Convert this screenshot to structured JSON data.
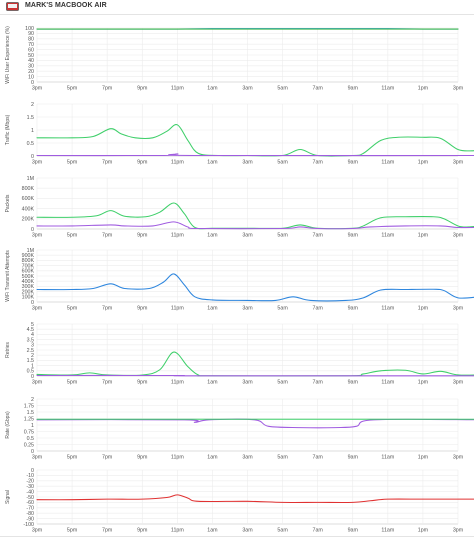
{
  "header": {
    "title": "MARK'S MACBOOK AIR",
    "icon": "laptop-icon"
  },
  "chart_data": [
    {
      "type": "line",
      "ylabel": "WiFi User Experience (%)",
      "x": [
        "3pm",
        "5pm",
        "7pm",
        "9pm",
        "11pm",
        "1am",
        "3am",
        "5am",
        "7am",
        "9am",
        "11am",
        "1pm",
        "3pm"
      ],
      "yticks": [
        "0",
        "10",
        "20",
        "30",
        "40",
        "50",
        "60",
        "70",
        "80",
        "90",
        "100"
      ],
      "ylim": [
        0,
        100
      ],
      "grid": true,
      "series": [
        {
          "color": "#4aa3df",
          "points": [
            [
              0,
              98
            ],
            [
              1,
              98
            ],
            [
              2,
              98
            ],
            [
              3,
              98
            ],
            [
              4,
              98
            ],
            [
              5,
              99
            ],
            [
              6,
              99
            ],
            [
              7,
              99
            ],
            [
              8,
              99
            ],
            [
              9,
              99
            ],
            [
              10,
              99
            ],
            [
              11,
              98
            ],
            [
              12,
              98
            ]
          ]
        },
        {
          "color": "#3fb950",
          "points": [
            [
              0,
              98
            ],
            [
              1,
              98
            ],
            [
              2,
              98
            ],
            [
              3,
              98
            ],
            [
              4,
              98
            ],
            [
              5,
              98
            ],
            [
              6,
              98
            ],
            [
              7,
              98
            ],
            [
              8,
              98
            ],
            [
              9,
              98
            ],
            [
              10,
              98
            ],
            [
              11,
              98
            ],
            [
              12,
              98
            ]
          ]
        }
      ]
    },
    {
      "type": "line",
      "ylabel": "Traffic (Mbps)",
      "x": [
        "3pm",
        "5pm",
        "7pm",
        "9pm",
        "11pm",
        "1am",
        "3am",
        "5am",
        "7am",
        "9am",
        "11am",
        "1pm",
        "3pm"
      ],
      "yticks": [
        "0",
        "0.5",
        "1",
        "1.5",
        "2"
      ],
      "ylim": [
        0,
        2
      ],
      "grid": true,
      "series": [
        {
          "color": "#3fcf6a",
          "points": [
            [
              0,
              0.7
            ],
            [
              1,
              0.7
            ],
            [
              1.6,
              0.75
            ],
            [
              2.1,
              1.05
            ],
            [
              2.4,
              0.85
            ],
            [
              2.8,
              0.7
            ],
            [
              3.3,
              0.7
            ],
            [
              3.7,
              0.95
            ],
            [
              4.0,
              1.2
            ],
            [
              4.3,
              0.6
            ],
            [
              4.6,
              0.1
            ],
            [
              5.2,
              0.02
            ],
            [
              6,
              0.02
            ],
            [
              7,
              0.02
            ],
            [
              7.5,
              0.25
            ],
            [
              8,
              0.02
            ],
            [
              9,
              0.02
            ],
            [
              9.3,
              0.1
            ],
            [
              9.8,
              0.6
            ],
            [
              10.3,
              0.72
            ],
            [
              11,
              0.72
            ],
            [
              11.5,
              0.68
            ],
            [
              12,
              0.25
            ],
            [
              12.4,
              0.2
            ],
            [
              12.6,
              0.25
            ]
          ]
        },
        {
          "color": "#a05ce0",
          "points": [
            [
              0,
              0.02
            ],
            [
              3.5,
              0.02
            ],
            [
              4.0,
              0.08
            ],
            [
              4.5,
              0.02
            ],
            [
              12.6,
              0.02
            ]
          ]
        }
      ]
    },
    {
      "type": "line",
      "ylabel": "Packets",
      "x": [
        "3pm",
        "5pm",
        "7pm",
        "9pm",
        "11pm",
        "1am",
        "3am",
        "5am",
        "7am",
        "9am",
        "11am",
        "1pm",
        "3pm"
      ],
      "yticks": [
        "0",
        "200K",
        "400K",
        "600K",
        "800K",
        "1M"
      ],
      "ylim": [
        0,
        1000000
      ],
      "grid": true,
      "series": [
        {
          "color": "#3fcf6a",
          "points": [
            [
              0,
              230000
            ],
            [
              1,
              230000
            ],
            [
              1.7,
              260000
            ],
            [
              2.1,
              360000
            ],
            [
              2.5,
              250000
            ],
            [
              3.1,
              240000
            ],
            [
              3.5,
              330000
            ],
            [
              3.9,
              510000
            ],
            [
              4.2,
              300000
            ],
            [
              4.5,
              30000
            ],
            [
              5,
              15000
            ],
            [
              6,
              15000
            ],
            [
              7,
              15000
            ],
            [
              7.5,
              80000
            ],
            [
              8,
              15000
            ],
            [
              9,
              15000
            ],
            [
              9.3,
              60000
            ],
            [
              9.8,
              220000
            ],
            [
              10.5,
              240000
            ],
            [
              11.3,
              240000
            ],
            [
              11.6,
              200000
            ],
            [
              12,
              60000
            ],
            [
              12.3,
              40000
            ],
            [
              12.6,
              60000
            ]
          ]
        },
        {
          "color": "#a05ce0",
          "points": [
            [
              0,
              60000
            ],
            [
              1,
              60000
            ],
            [
              2.1,
              80000
            ],
            [
              2.5,
              60000
            ],
            [
              3.3,
              60000
            ],
            [
              3.9,
              140000
            ],
            [
              4.3,
              40000
            ],
            [
              4.6,
              10000
            ],
            [
              7,
              10000
            ],
            [
              7.5,
              40000
            ],
            [
              8,
              10000
            ],
            [
              9,
              10000
            ],
            [
              9.5,
              40000
            ],
            [
              10.5,
              60000
            ],
            [
              11.5,
              60000
            ],
            [
              12,
              30000
            ],
            [
              12.6,
              30000
            ]
          ]
        }
      ]
    },
    {
      "type": "line",
      "ylabel": "WiFi Transmit Attempts",
      "x": [
        "3pm",
        "5pm",
        "7pm",
        "9pm",
        "11pm",
        "1am",
        "3am",
        "5am",
        "7am",
        "9am",
        "11am",
        "1pm",
        "3pm"
      ],
      "yticks": [
        "0",
        "100K",
        "200K",
        "300K",
        "400K",
        "500K",
        "600K",
        "700K",
        "800K",
        "900K",
        "1M"
      ],
      "ylim": [
        0,
        1000000
      ],
      "grid": true,
      "series": [
        {
          "color": "#2e86de",
          "points": [
            [
              0,
              240000
            ],
            [
              1,
              240000
            ],
            [
              1.6,
              260000
            ],
            [
              2.1,
              350000
            ],
            [
              2.5,
              260000
            ],
            [
              3.2,
              260000
            ],
            [
              3.6,
              380000
            ],
            [
              3.9,
              540000
            ],
            [
              4.2,
              330000
            ],
            [
              4.5,
              100000
            ],
            [
              5,
              40000
            ],
            [
              6,
              30000
            ],
            [
              6.8,
              30000
            ],
            [
              7.3,
              100000
            ],
            [
              7.8,
              30000
            ],
            [
              8.8,
              30000
            ],
            [
              9.3,
              80000
            ],
            [
              9.8,
              230000
            ],
            [
              10.5,
              240000
            ],
            [
              11.3,
              245000
            ],
            [
              11.6,
              220000
            ],
            [
              12,
              80000
            ],
            [
              12.6,
              100000
            ]
          ]
        }
      ]
    },
    {
      "type": "line",
      "ylabel": "Retries",
      "x": [
        "3pm",
        "5pm",
        "7pm",
        "9pm",
        "11pm",
        "1am",
        "3am",
        "5am",
        "7am",
        "9am",
        "11am",
        "1pm",
        "3pm"
      ],
      "yticks": [
        "0",
        "0.5",
        "1",
        "1.5",
        "2",
        "2.5",
        "3",
        "3.5",
        "4",
        "4.5",
        "5"
      ],
      "ylim": [
        0,
        5
      ],
      "grid": true,
      "series": [
        {
          "color": "#3fcf6a",
          "points": [
            [
              0,
              0.15
            ],
            [
              1,
              0.1
            ],
            [
              1.5,
              0.3
            ],
            [
              2,
              0.1
            ],
            [
              3,
              0.1
            ],
            [
              3.5,
              0.6
            ],
            [
              3.9,
              2.3
            ],
            [
              4.3,
              0.9
            ],
            [
              4.6,
              0.1
            ],
            [
              5,
              0.02
            ],
            [
              8.8,
              0.02
            ],
            [
              9.3,
              0.2
            ],
            [
              9.8,
              0.5
            ],
            [
              10.5,
              0.55
            ],
            [
              11,
              0.2
            ],
            [
              11.5,
              0.45
            ],
            [
              12,
              0.1
            ],
            [
              12.6,
              0.1
            ]
          ]
        },
        {
          "color": "#a05ce0",
          "points": [
            [
              0,
              0.05
            ],
            [
              4,
              0.05
            ],
            [
              4.5,
              0.02
            ],
            [
              12.6,
              0.02
            ]
          ]
        }
      ]
    },
    {
      "type": "line",
      "ylabel": "Rate (Gbps)",
      "x": [
        "3pm",
        "5pm",
        "7pm",
        "9pm",
        "11pm",
        "1am",
        "3am",
        "5am",
        "7am",
        "9am",
        "11am",
        "1pm",
        "3pm"
      ],
      "yticks": [
        "0",
        "0.25",
        "0.5",
        "0.75",
        "1",
        "1.25",
        "1.5",
        "1.75",
        "2"
      ],
      "ylim": [
        0,
        2
      ],
      "grid": true,
      "series": [
        {
          "color": "#a05ce0",
          "points": [
            [
              0,
              1.2
            ],
            [
              4.2,
              1.2
            ],
            [
              4.5,
              1.1
            ],
            [
              4.9,
              1.2
            ],
            [
              6.2,
              1.2
            ],
            [
              6.6,
              0.95
            ],
            [
              7.5,
              0.9
            ],
            [
              8.5,
              0.9
            ],
            [
              9.1,
              0.95
            ],
            [
              9.6,
              1.2
            ],
            [
              12.6,
              1.2
            ]
          ]
        },
        {
          "color": "#3fcf6a",
          "points": [
            [
              0,
              1.22
            ],
            [
              12.6,
              1.22
            ]
          ]
        }
      ]
    },
    {
      "type": "line",
      "ylabel": "Signal",
      "x": [
        "3pm",
        "5pm",
        "7pm",
        "9pm",
        "11pm",
        "1am",
        "3am",
        "5am",
        "7am",
        "9am",
        "11am",
        "1pm",
        "3pm"
      ],
      "yticks": [
        "-100",
        "-90",
        "-80",
        "-70",
        "-60",
        "-50",
        "-40",
        "-30",
        "-20",
        "-10",
        "0"
      ],
      "ylim": [
        -100,
        0
      ],
      "grid": true,
      "series": [
        {
          "color": "#e03131",
          "points": [
            [
              0,
              -55
            ],
            [
              1,
              -55
            ],
            [
              2,
              -54
            ],
            [
              3,
              -54
            ],
            [
              3.7,
              -51
            ],
            [
              4,
              -46
            ],
            [
              4.3,
              -52
            ],
            [
              4.6,
              -58
            ],
            [
              6,
              -58
            ],
            [
              7,
              -60
            ],
            [
              8,
              -60
            ],
            [
              9,
              -60
            ],
            [
              9.5,
              -57
            ],
            [
              10,
              -54
            ],
            [
              11,
              -54
            ],
            [
              12,
              -54
            ],
            [
              12.6,
              -54
            ]
          ]
        }
      ]
    }
  ]
}
